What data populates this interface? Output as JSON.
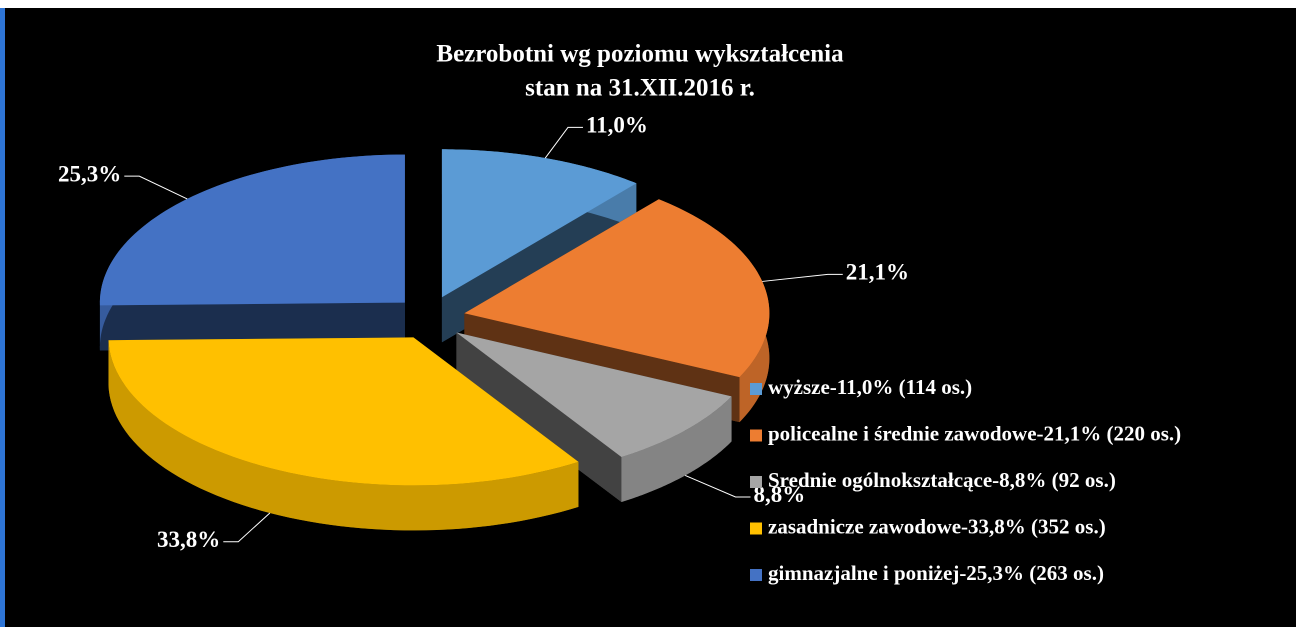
{
  "chart_data": {
    "type": "pie3d",
    "title": "Bezrobotni wg poziomu wykształcenia",
    "subtitle": "stan na 31.XII.2016 r.",
    "categories": [
      "wyższe-11,0% (114 os.)",
      "policealne i średnie zawodowe-21,1% (220 os.)",
      "Srednie ogólnokształcące-8,8% (92 os.)",
      "zasadnicze zawodowe-33,8% (352 os.)",
      "gimnazjalne i poniżej-25,3% (263 os.)"
    ],
    "values": [
      11.0,
      21.1,
      8.8,
      33.8,
      25.3
    ],
    "value_labels": [
      "11,0%",
      "21,1%",
      "8,8%",
      "33,8%",
      "25,3%"
    ],
    "colors": [
      "#5b9bd5",
      "#ed7d31",
      "#a5a5a5",
      "#ffc000",
      "#4472c4"
    ],
    "legend": "right"
  }
}
